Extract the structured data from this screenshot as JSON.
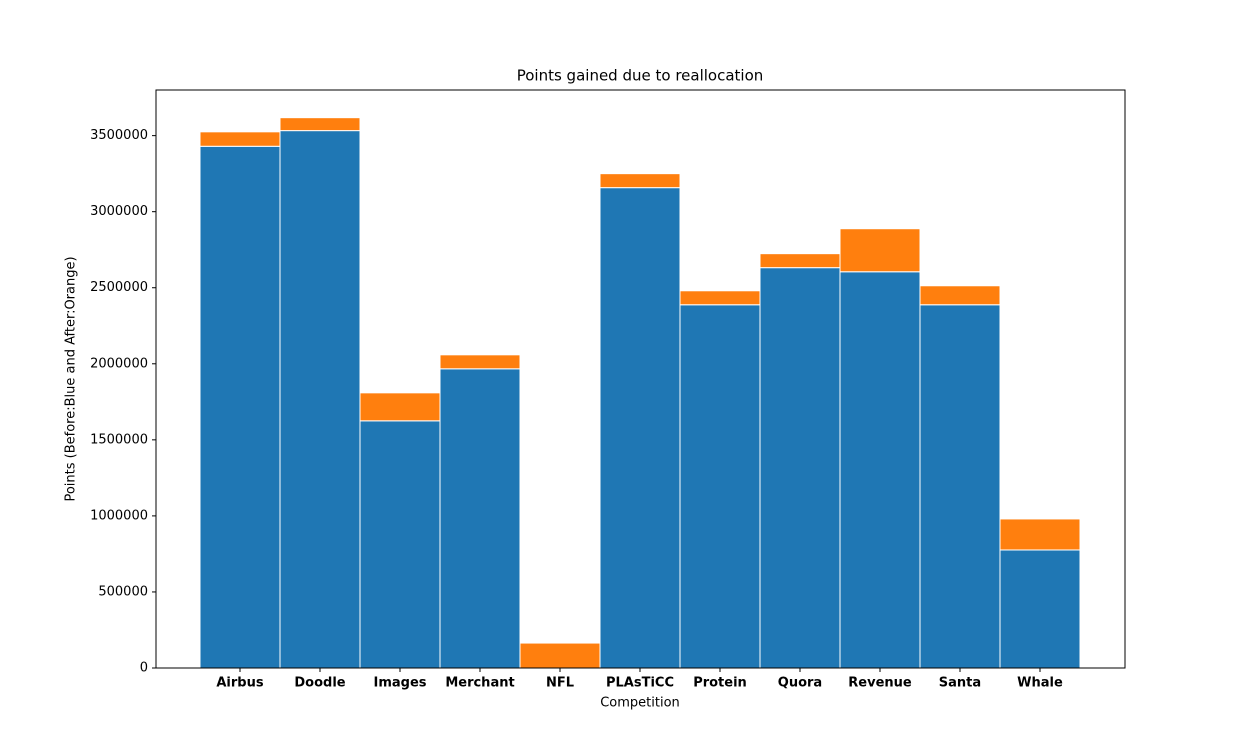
{
  "chart_data": {
    "type": "stacked_bar",
    "title": "Points gained due to reallocation",
    "x_label": "Competition",
    "y_label": "Points (Before:Blue and After:Orange)",
    "categories": [
      "Airbus",
      "Doodle",
      "Images",
      "Merchant",
      "NFL",
      "PLAsTiCC",
      "Protein",
      "Quora",
      "Revenue",
      "Santa",
      "Whale"
    ],
    "series": [
      {
        "color": "#1f77b4",
        "values": [
          3430000,
          3533000,
          1625000,
          1967000,
          0,
          3158000,
          2388000,
          2632000,
          2605000,
          2388000,
          776000
        ]
      },
      {
        "color": "#ff7f0e",
        "values": [
          95000,
          85000,
          184000,
          92000,
          164000,
          92000,
          92000,
          92000,
          283000,
          125000,
          204000
        ]
      }
    ],
    "ylim": [
      0,
      3800000
    ],
    "yticks": [
      0,
      500000,
      1000000,
      1500000,
      2000000,
      2500000,
      3000000,
      3500000
    ],
    "grid": false
  }
}
